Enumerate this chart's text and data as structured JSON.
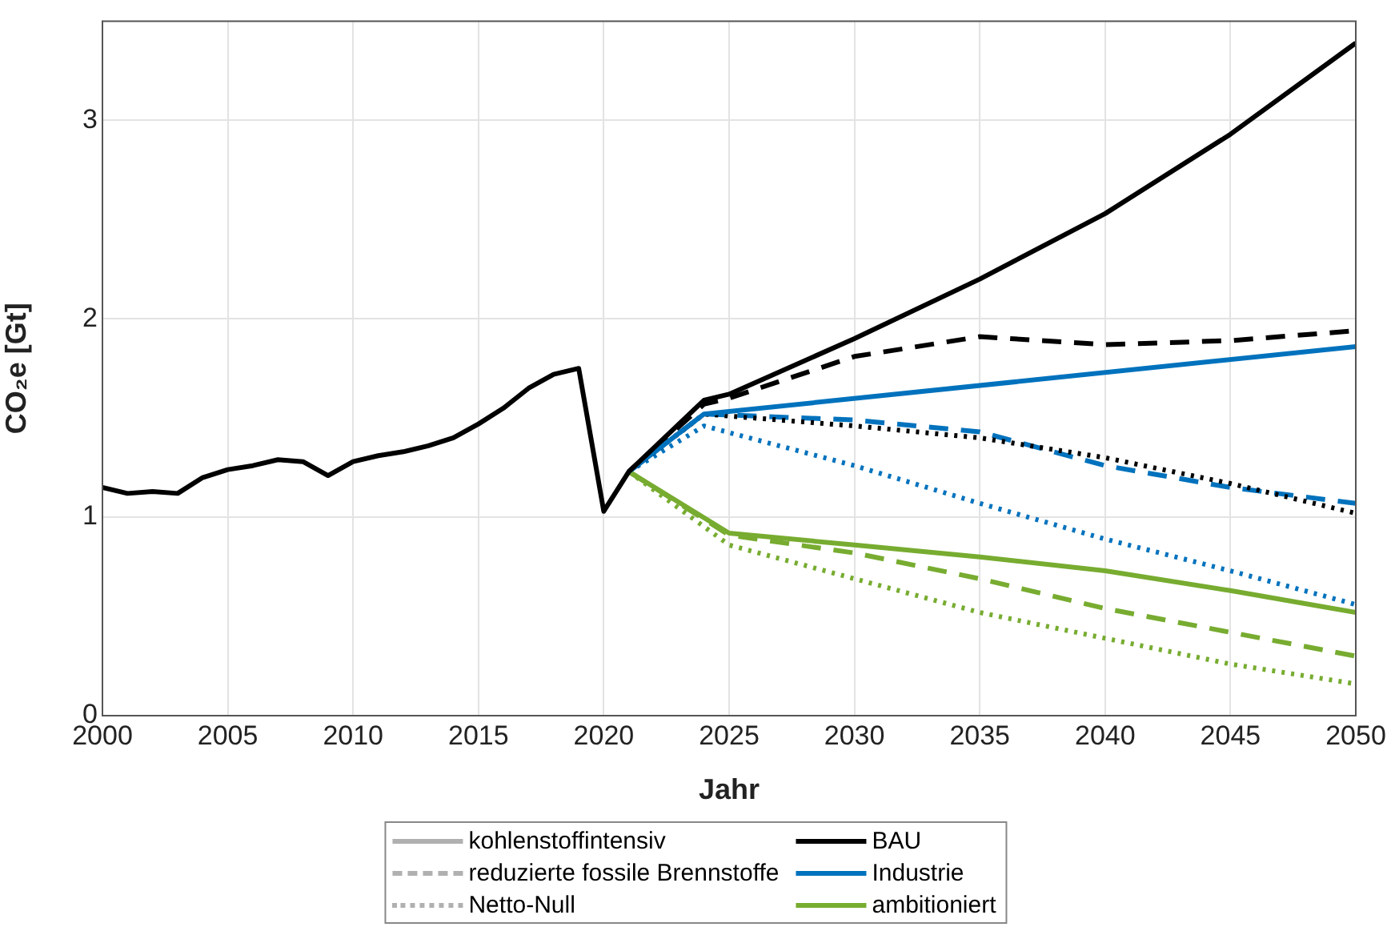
{
  "chart_data": {
    "type": "line",
    "xlabel": "Jahr",
    "ylabel": "CO₂e [Gt]",
    "xlim": [
      2000,
      2050
    ],
    "xticks": [
      2000,
      2005,
      2010,
      2015,
      2020,
      2025,
      2030,
      2035,
      2040,
      2045,
      2050
    ],
    "ylim": [
      0,
      3.5
    ],
    "yticks": [
      0,
      1,
      2,
      3
    ],
    "grid": true,
    "legend": "bottom",
    "marker": "none",
    "series": [
      {
        "name": "kohlenstoffintensiv",
        "color": "#b0b0b0",
        "line_style": "solid"
      },
      {
        "name": "reduzierte fossile Brennstoffe",
        "color": "#b0b0b0",
        "line_style": "dashed"
      },
      {
        "name": "Netto-Null",
        "color": "#b0b0b0",
        "line_style": "dotted"
      },
      {
        "name": "BAU",
        "color": "#000000",
        "line_style": "solid",
        "x": [
          2000,
          2001,
          2002,
          2003,
          2004,
          2005,
          2006,
          2007,
          2008,
          2009,
          2010,
          2011,
          2012,
          2013,
          2014,
          2015,
          2016,
          2017,
          2018,
          2019,
          2020,
          2021,
          2024,
          2025,
          2030,
          2035,
          2040,
          2045,
          2050
        ],
        "values": [
          1.15,
          1.12,
          1.13,
          1.12,
          1.2,
          1.24,
          1.26,
          1.29,
          1.28,
          1.21,
          1.28,
          1.31,
          1.33,
          1.36,
          1.4,
          1.47,
          1.55,
          1.65,
          1.72,
          1.75,
          1.03,
          1.23,
          1.59,
          1.62,
          1.9,
          2.2,
          2.53,
          2.93,
          3.39
        ]
      },
      {
        "name": "Industrie",
        "color": "#0072bd",
        "line_style": "solid",
        "x": [
          2021,
          2024,
          2050
        ],
        "values": [
          1.23,
          1.52,
          1.86
        ]
      },
      {
        "name": "ambitioniert",
        "color": "#77ac30",
        "line_style": "solid",
        "x": [
          2021,
          2025,
          2030,
          2035,
          2040,
          2045,
          2050
        ],
        "values": [
          1.23,
          0.92,
          0.86,
          0.8,
          0.73,
          0.63,
          0.52
        ]
      },
      {
        "color": "#000000",
        "line_style": "dashed",
        "x": [
          2021,
          2024,
          2025,
          2030,
          2035,
          2040,
          2045,
          2050
        ],
        "values": [
          1.23,
          1.57,
          1.6,
          1.81,
          1.91,
          1.87,
          1.89,
          1.94
        ]
      },
      {
        "color": "#000000",
        "line_style": "dotted",
        "x": [
          2021,
          2024,
          2030,
          2035,
          2040,
          2045,
          2050
        ],
        "values": [
          1.23,
          1.52,
          1.46,
          1.4,
          1.3,
          1.17,
          1.02
        ]
      },
      {
        "color": "#0072bd",
        "line_style": "dashed",
        "x": [
          2021,
          2024,
          2030,
          2035,
          2040,
          2045,
          2050
        ],
        "values": [
          1.23,
          1.52,
          1.49,
          1.43,
          1.26,
          1.15,
          1.07
        ]
      },
      {
        "color": "#0072bd",
        "line_style": "dotted",
        "x": [
          2021,
          2024,
          2030,
          2035,
          2040,
          2045,
          2050
        ],
        "values": [
          1.23,
          1.46,
          1.26,
          1.07,
          0.89,
          0.73,
          0.56
        ]
      },
      {
        "color": "#77ac30",
        "line_style": "dashed",
        "x": [
          2021,
          2025,
          2030,
          2035,
          2040,
          2045,
          2050
        ],
        "values": [
          1.23,
          0.91,
          0.82,
          0.69,
          0.54,
          0.42,
          0.3
        ]
      },
      {
        "color": "#77ac30",
        "line_style": "dotted",
        "x": [
          2021,
          2025,
          2030,
          2035,
          2040,
          2045,
          2050
        ],
        "values": [
          1.23,
          0.86,
          0.69,
          0.52,
          0.39,
          0.26,
          0.16
        ]
      }
    ]
  }
}
